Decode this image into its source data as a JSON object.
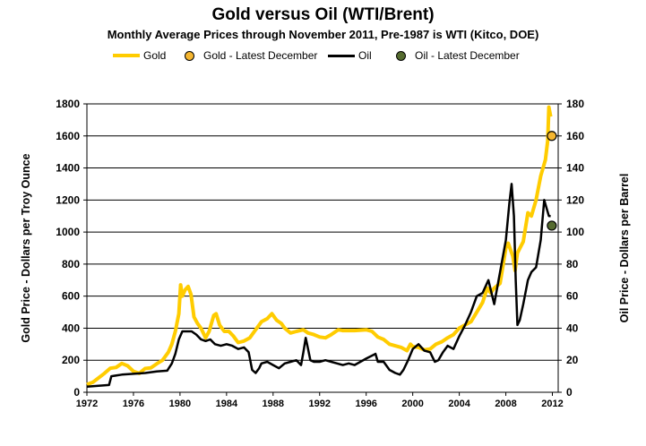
{
  "chart_data": {
    "type": "line",
    "title": "Gold versus Oil (WTI/Brent)",
    "subtitle": "Monthly Average Prices through November 2011, Pre-1987 is WTI (Kitco, DOE)",
    "ylabel_left": "Gold Price - Dollars per Troy Ounce",
    "ylabel_right": "Oil Price - Dollars per Barrel",
    "xlim": [
      1972,
      2012.5
    ],
    "x_ticks": [
      "1972",
      "1976",
      "1980",
      "1984",
      "1988",
      "1992",
      "1996",
      "2000",
      "2004",
      "2008",
      "2012"
    ],
    "x_tick_values": [
      1972,
      1976,
      1980,
      1984,
      1988,
      1992,
      1996,
      2000,
      2004,
      2008,
      2012
    ],
    "ylim_left": [
      0,
      1800
    ],
    "ylim_right": [
      0,
      180
    ],
    "y_ticks_left": [
      "0",
      "200",
      "400",
      "600",
      "800",
      "1000",
      "1200",
      "1400",
      "1600",
      "1800"
    ],
    "y_tick_values_left": [
      0,
      200,
      400,
      600,
      800,
      1000,
      1200,
      1400,
      1600,
      1800
    ],
    "y_ticks_right": [
      "0",
      "20",
      "40",
      "60",
      "80",
      "100",
      "120",
      "140",
      "160",
      "180"
    ],
    "y_tick_values_right": [
      0,
      20,
      40,
      60,
      80,
      100,
      120,
      140,
      160,
      180
    ],
    "grid": true,
    "legend_position": "top",
    "colors": {
      "gold": "#FFCC00",
      "oil": "#000000",
      "gold_marker": "#F5B630",
      "oil_marker": "#556B2F"
    },
    "series": [
      {
        "name": "Gold",
        "axis": "left",
        "x": [
          1972,
          1972.5,
          1973,
          1973.5,
          1974,
          1974.5,
          1975,
          1975.5,
          1976,
          1976.5,
          1977,
          1977.5,
          1978,
          1978.5,
          1979,
          1979.3,
          1979.6,
          1979.9,
          1980.05,
          1980.2,
          1980.45,
          1980.7,
          1980.95,
          1981.2,
          1981.5,
          1981.8,
          1982.2,
          1982.5,
          1982.9,
          1983.1,
          1983.4,
          1983.8,
          1984.2,
          1984.6,
          1985,
          1985.5,
          1986,
          1986.5,
          1987,
          1987.5,
          1987.9,
          1988.3,
          1988.7,
          1989,
          1989.5,
          1990,
          1990.6,
          1991,
          1991.5,
          1992,
          1992.5,
          1993,
          1993.6,
          1994,
          1995,
          1996,
          1996.5,
          1997,
          1997.5,
          1998,
          1999,
          1999.5,
          1999.8,
          2000,
          2000.5,
          2001,
          2001.5,
          2002,
          2002.5,
          2003,
          2003.5,
          2004,
          2005,
          2005.5,
          2006,
          2006.4,
          2006.7,
          2007,
          2007.5,
          2008,
          2008.2,
          2008.6,
          2008.8,
          2009,
          2009.5,
          2009.9,
          2010.2,
          2010.6,
          2011,
          2011.4,
          2011.6,
          2011.7,
          2011.85
        ],
        "values": [
          48,
          62,
          90,
          118,
          150,
          155,
          180,
          165,
          130,
          118,
          148,
          152,
          178,
          200,
          250,
          300,
          380,
          490,
          670,
          600,
          640,
          660,
          610,
          470,
          430,
          400,
          340,
          380,
          480,
          490,
          420,
          380,
          380,
          350,
          310,
          320,
          340,
          390,
          440,
          460,
          490,
          450,
          430,
          400,
          370,
          380,
          390,
          370,
          360,
          345,
          340,
          360,
          390,
          385,
          385,
          390,
          380,
          345,
          330,
          300,
          280,
          260,
          300,
          285,
          280,
          265,
          270,
          300,
          315,
          340,
          360,
          400,
          440,
          500,
          560,
          650,
          620,
          650,
          680,
          900,
          930,
          850,
          760,
          870,
          940,
          1120,
          1100,
          1200,
          1350,
          1450,
          1570,
          1780,
          1720
        ]
      },
      {
        "name": "Gold - Latest December",
        "axis": "left",
        "type": "marker",
        "x": [
          2011.95
        ],
        "values": [
          1600
        ]
      },
      {
        "name": "Oil",
        "axis": "right",
        "x": [
          1972,
          1973,
          1973.9,
          1974.1,
          1975,
          1976,
          1977,
          1978,
          1978.9,
          1979.3,
          1979.6,
          1979.9,
          1980.2,
          1980.6,
          1981,
          1981.4,
          1981.8,
          1982.2,
          1982.6,
          1983,
          1983.5,
          1984,
          1984.5,
          1985,
          1985.5,
          1985.9,
          1986.2,
          1986.5,
          1986.8,
          1987,
          1987.5,
          1988,
          1988.5,
          1989,
          1989.5,
          1990,
          1990.4,
          1990.6,
          1990.8,
          1990.95,
          1991.2,
          1991.5,
          1992,
          1992.5,
          1993,
          1993.5,
          1994,
          1994.5,
          1995,
          1996,
          1996.8,
          1997,
          1997.5,
          1998,
          1998.5,
          1998.9,
          1999.2,
          1999.6,
          2000,
          2000.5,
          2001,
          2001.5,
          2001.9,
          2002.2,
          2002.6,
          2003,
          2003.5,
          2004,
          2004.5,
          2005,
          2005.5,
          2006,
          2006.5,
          2007,
          2007.5,
          2008,
          2008.3,
          2008.5,
          2008.7,
          2008.85,
          2009,
          2009.2,
          2009.5,
          2009.9,
          2010.2,
          2010.6,
          2011,
          2011.3,
          2011.5,
          2011.7,
          2011.85
        ],
        "values": [
          3.5,
          4,
          4.5,
          10,
          11,
          11.5,
          12,
          13,
          13.5,
          18,
          24,
          33,
          38,
          38,
          38,
          36,
          33,
          32,
          33,
          30,
          29,
          30,
          29,
          27,
          28,
          25,
          14,
          12,
          15,
          18,
          19,
          17,
          15,
          18,
          19,
          20,
          17,
          25,
          34,
          29,
          20,
          19,
          19,
          20,
          19,
          18,
          17,
          18,
          17,
          21,
          24,
          19,
          19,
          14,
          12,
          11,
          14,
          20,
          27,
          30,
          26,
          25,
          19,
          20,
          25,
          29,
          27,
          35,
          42,
          50,
          60,
          62,
          70,
          55,
          75,
          95,
          118,
          130,
          110,
          70,
          42,
          45,
          55,
          70,
          75,
          78,
          95,
          120,
          115,
          110,
          110
        ]
      },
      {
        "name": "Oil - Latest December",
        "axis": "right",
        "type": "marker",
        "x": [
          2011.95
        ],
        "values": [
          104
        ]
      }
    ]
  }
}
